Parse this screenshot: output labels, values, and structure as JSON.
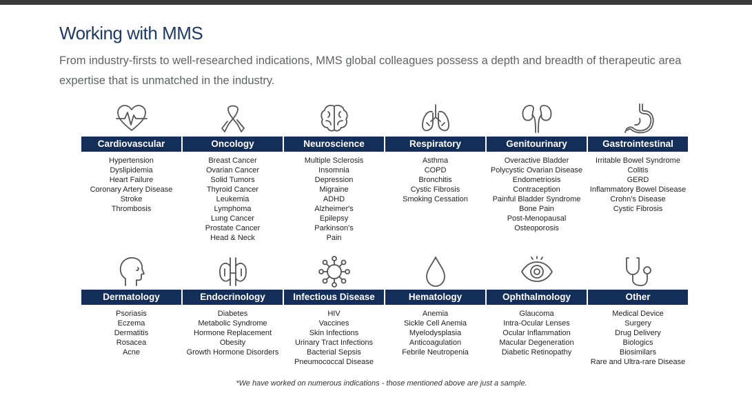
{
  "header": {
    "title": "Working with MMS",
    "intro": "From industry-firsts to well-researched indications, MMS global colleagues possess a depth and breadth of therapeutic area expertise that is unmatched in the industry."
  },
  "areas": [
    {
      "name": "Cardiovascular",
      "icon": "heart-pulse-icon",
      "items": [
        "Hypertension",
        "Dyslipidemia",
        "Heart Failure",
        "Coronary Artery Disease",
        "Stroke",
        "Thrombosis"
      ]
    },
    {
      "name": "Oncology",
      "icon": "ribbon-icon",
      "items": [
        "Breast Cancer",
        "Ovarian Cancer",
        "Solid Tumors",
        "Thyroid Cancer",
        "Leukemia",
        "Lymphoma",
        "Lung Cancer",
        "Prostate Cancer",
        "Head & Neck"
      ]
    },
    {
      "name": "Neuroscience",
      "icon": "brain-icon",
      "items": [
        "Multiple Sclerosis",
        "Insomnia",
        "Depression",
        "Migraine",
        "ADHD",
        "Alzheimer's",
        "Epilepsy",
        "Parkinson's",
        "Pain"
      ]
    },
    {
      "name": "Respiratory",
      "icon": "lungs-icon",
      "items": [
        "Asthma",
        "COPD",
        "Bronchitis",
        "Cystic Fibrosis",
        "Smoking Cessation"
      ]
    },
    {
      "name": "Genitourinary",
      "icon": "kidneys-icon",
      "items": [
        "Overactive Bladder",
        "Polycystic Ovarian Disease",
        "Endometriosis",
        "Contraception",
        "Painful Bladder Syndrome",
        "Bone Pain",
        "Post-Menopausal",
        "Osteoporosis"
      ]
    },
    {
      "name": "Gastrointestinal",
      "icon": "stomach-icon",
      "items": [
        "Irritable Bowel Syndrome",
        "Colitis",
        "GERD",
        "Inflammatory Bowel Disease",
        "Crohn's Disease",
        "Cystic Fibrosis"
      ]
    },
    {
      "name": "Dermatology",
      "icon": "head-profile-icon",
      "items": [
        "Psoriasis",
        "Eczema",
        "Dermatitis",
        "Rosacea",
        "Acne"
      ]
    },
    {
      "name": "Endocrinology",
      "icon": "thyroid-icon",
      "items": [
        "Diabetes",
        "Metabolic Syndrome",
        "Hormone Replacement",
        "Obesity",
        "Growth Hormone Disorders"
      ]
    },
    {
      "name": "Infectious Disease",
      "icon": "virus-icon",
      "items": [
        "HIV",
        "Vaccines",
        "Skin Infections",
        "Urinary Tract Infections",
        "Bacterial Sepsis",
        "Pneumococcal Disease"
      ]
    },
    {
      "name": "Hematology",
      "icon": "blood-drop-icon",
      "items": [
        "Anemia",
        "Sickle Cell Anemia",
        "Myelodysplasia",
        "Anticoagulation",
        "Febrile Neutropenia"
      ]
    },
    {
      "name": "Ophthalmology",
      "icon": "eye-icon",
      "items": [
        "Glaucoma",
        "Intra-Ocular Lenses",
        "Ocular Inflammation",
        "Macular Degeneration",
        "Diabetic Retinopathy"
      ]
    },
    {
      "name": "Other",
      "icon": "stethoscope-icon",
      "items": [
        "Medical Device",
        "Surgery",
        "Drug Delivery",
        "Biologics",
        "Biosimilars",
        "Rare and Ultra-rare Disease"
      ]
    }
  ],
  "footnote": "*We have worked on numerous indications - those mentioned above are just a sample.",
  "colors": {
    "bar": "#142e5a",
    "title": "#1f3a63",
    "body_text": "#5f6368",
    "top_bar": "#3b3b3b"
  }
}
